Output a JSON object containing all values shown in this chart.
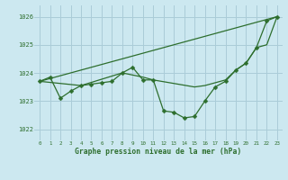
{
  "title": "Graphe pression niveau de la mer (hPa)",
  "bg_color": "#cce8f0",
  "grid_color": "#aaccd8",
  "line_color": "#2d6e2d",
  "xlim": [
    -0.5,
    23.5
  ],
  "ylim": [
    1021.6,
    1026.4
  ],
  "yticks": [
    1022,
    1023,
    1024,
    1025,
    1026
  ],
  "xticks": [
    0,
    1,
    2,
    3,
    4,
    5,
    6,
    7,
    8,
    9,
    10,
    11,
    12,
    13,
    14,
    15,
    16,
    17,
    18,
    19,
    20,
    21,
    22,
    23
  ],
  "main_x": [
    0,
    1,
    2,
    3,
    4,
    5,
    6,
    7,
    8,
    9,
    10,
    11,
    12,
    13,
    14,
    15,
    16,
    17,
    18,
    19,
    20,
    21,
    22,
    23
  ],
  "main_y": [
    1023.7,
    1023.85,
    1023.1,
    1023.35,
    1023.55,
    1023.6,
    1023.65,
    1023.7,
    1024.0,
    1024.2,
    1023.75,
    1023.75,
    1022.65,
    1022.6,
    1022.4,
    1022.45,
    1023.0,
    1023.5,
    1023.7,
    1024.1,
    1024.35,
    1024.9,
    1025.85,
    1026.0
  ],
  "line1_x": [
    0,
    23
  ],
  "line1_y": [
    1023.7,
    1026.0
  ],
  "line2_x": [
    0,
    4,
    8,
    10,
    11,
    15,
    16,
    17,
    18,
    19,
    20,
    21,
    22,
    23
  ],
  "line2_y": [
    1023.7,
    1023.55,
    1024.0,
    1023.85,
    1023.75,
    1023.5,
    1023.55,
    1023.65,
    1023.75,
    1024.1,
    1024.35,
    1024.9,
    1025.0,
    1026.0
  ]
}
